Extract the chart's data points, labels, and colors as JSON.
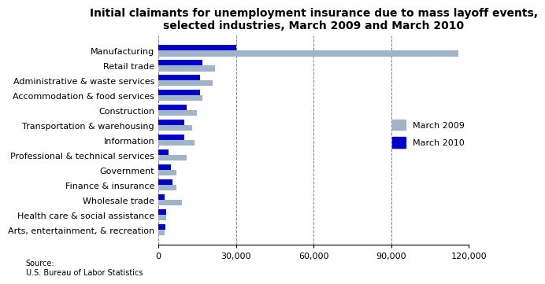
{
  "title": "Initial claimants for unemployment insurance due to mass layoff events,\nselected industries, March 2009 and March 2010",
  "categories": [
    "Manufacturing",
    "Retail trade",
    "Administrative & waste services",
    "Accommodation & food services",
    "Construction",
    "Transportation & warehousing",
    "Information",
    "Professional & technical services",
    "Government",
    "Finance & insurance",
    "Wholesale trade",
    "Health care & social assistance",
    "Arts, entertainment, & recreation"
  ],
  "march2009": [
    116000,
    22000,
    21000,
    17000,
    15000,
    13000,
    14000,
    11000,
    7000,
    7000,
    9000,
    3000,
    2500
  ],
  "march2010": [
    30000,
    17000,
    16000,
    16000,
    11000,
    10000,
    10000,
    4000,
    5000,
    5500,
    2500,
    3000,
    2800
  ],
  "color_2009": "#a0b4c8",
  "color_2010": "#0000cd",
  "xlim": [
    0,
    120000
  ],
  "xticks": [
    0,
    30000,
    60000,
    90000,
    120000
  ],
  "xticklabels": [
    "0",
    "30,000",
    "60,000",
    "90,000",
    "120,000"
  ],
  "source_text": "Source:\nU.S. Bureau of Labor Statistics",
  "legend_labels": [
    "March 2009",
    "March 2010"
  ],
  "title_fontsize": 10,
  "tick_fontsize": 8,
  "label_fontsize": 8
}
